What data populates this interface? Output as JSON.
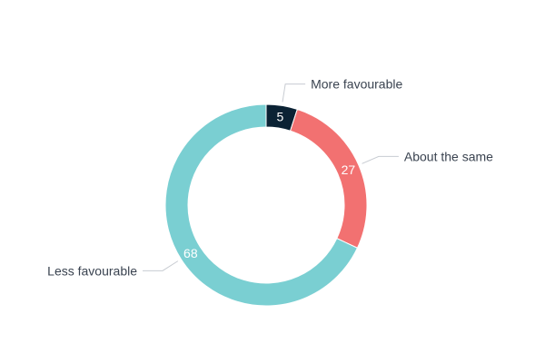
{
  "chart_data": {
    "type": "pie",
    "variant": "donut",
    "title": "",
    "categories": [
      "More favourable",
      "About the same",
      "Less favourable"
    ],
    "values": [
      5,
      27,
      68
    ],
    "data_labels": [
      "5",
      "27",
      "68"
    ],
    "colors": [
      "#0b2234",
      "#f27171",
      "#7acfd2"
    ],
    "legend": "none",
    "labels_position": "outside-with-leader-lines"
  }
}
